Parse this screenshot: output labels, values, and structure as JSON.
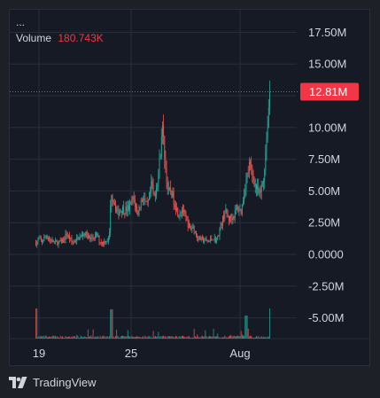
{
  "legend": {
    "title": "...",
    "volume_label": "Volume",
    "volume_value": "180.743K"
  },
  "footer": {
    "brand": "TradingView"
  },
  "colors": {
    "up": "#26a69a",
    "down": "#ef5350",
    "background": "#161a25",
    "grid": "#2a2e39",
    "text": "#d1d4dc",
    "price_label": "#f23645"
  },
  "chart_data": {
    "type": "candlestick",
    "y_axis_labels": [
      "17.50M",
      "15.00M",
      "12.50M",
      "10.00M",
      "7.50M",
      "5.00M",
      "2.50M",
      "0.0000",
      "-2.50M",
      "-5.00M"
    ],
    "y_ticks": [
      17500000,
      15000000,
      12500000,
      10000000,
      7500000,
      5000000,
      2500000,
      0,
      -2500000,
      -5000000
    ],
    "ylim": [
      -6000000,
      18500000
    ],
    "x_axis_labels": [
      "19",
      "25",
      "Aug"
    ],
    "current_price_label": "12.81M",
    "current_price": 12810000,
    "price_path": [
      [
        0,
        0.9
      ],
      [
        0.03,
        1.2
      ],
      [
        0.06,
        1.0
      ],
      [
        0.1,
        1.5
      ],
      [
        0.14,
        1.1
      ],
      [
        0.2,
        0.9
      ],
      [
        0.26,
        1.0
      ],
      [
        0.3,
        1.6
      ],
      [
        0.33,
        1.3
      ],
      [
        0.36,
        0.9
      ],
      [
        0.4,
        1.2
      ],
      [
        0.44,
        1.4
      ],
      [
        0.48,
        1.7
      ],
      [
        0.5,
        1.5
      ],
      [
        0.53,
        1.2
      ],
      [
        0.57,
        1.4
      ],
      [
        0.6,
        1.5
      ],
      [
        0.63,
        1.0
      ],
      [
        0.66,
        0.9
      ],
      [
        0.68,
        1.1
      ],
      [
        0.7,
        1.1
      ],
      [
        0.72,
        1.2
      ],
      [
        0.74,
        5.0
      ],
      [
        0.77,
        4.2
      ],
      [
        0.8,
        3.2
      ],
      [
        0.84,
        3.6
      ],
      [
        0.88,
        3.5
      ],
      [
        0.92,
        3.7
      ],
      [
        0.96,
        4.4
      ],
      [
        1.0,
        3.2
      ],
      [
        1.03,
        4.1
      ],
      [
        1.06,
        4.6
      ],
      [
        1.08,
        3.8
      ],
      [
        1.1,
        3.9
      ],
      [
        1.12,
        4.6
      ],
      [
        1.14,
        5.6
      ],
      [
        1.16,
        4.4
      ],
      [
        1.18,
        5.2
      ],
      [
        1.2,
        6.0
      ],
      [
        1.22,
        7.5
      ],
      [
        1.24,
        10.3
      ],
      [
        1.26,
        8.5
      ],
      [
        1.28,
        6.5
      ],
      [
        1.3,
        4.8
      ],
      [
        1.33,
        5.0
      ],
      [
        1.36,
        4.2
      ],
      [
        1.4,
        3.2
      ],
      [
        1.44,
        3.6
      ],
      [
        1.48,
        2.6
      ],
      [
        1.52,
        2.0
      ],
      [
        1.55,
        2.2
      ],
      [
        1.58,
        1.4
      ],
      [
        1.62,
        1.2
      ],
      [
        1.66,
        1.1
      ],
      [
        1.7,
        1.0
      ],
      [
        1.74,
        1.3
      ],
      [
        1.78,
        1.1
      ],
      [
        1.82,
        2.3
      ],
      [
        1.86,
        3.4
      ],
      [
        1.9,
        2.8
      ],
      [
        1.94,
        3.0
      ],
      [
        1.98,
        3.6
      ],
      [
        2.02,
        3.4
      ],
      [
        2.06,
        5.5
      ],
      [
        2.1,
        7.0
      ],
      [
        2.14,
        6.0
      ],
      [
        2.17,
        5.2
      ],
      [
        2.2,
        4.6
      ],
      [
        2.24,
        5.9
      ],
      [
        2.3,
        12.81
      ]
    ],
    "candle_count": 230,
    "seed": 7
  }
}
